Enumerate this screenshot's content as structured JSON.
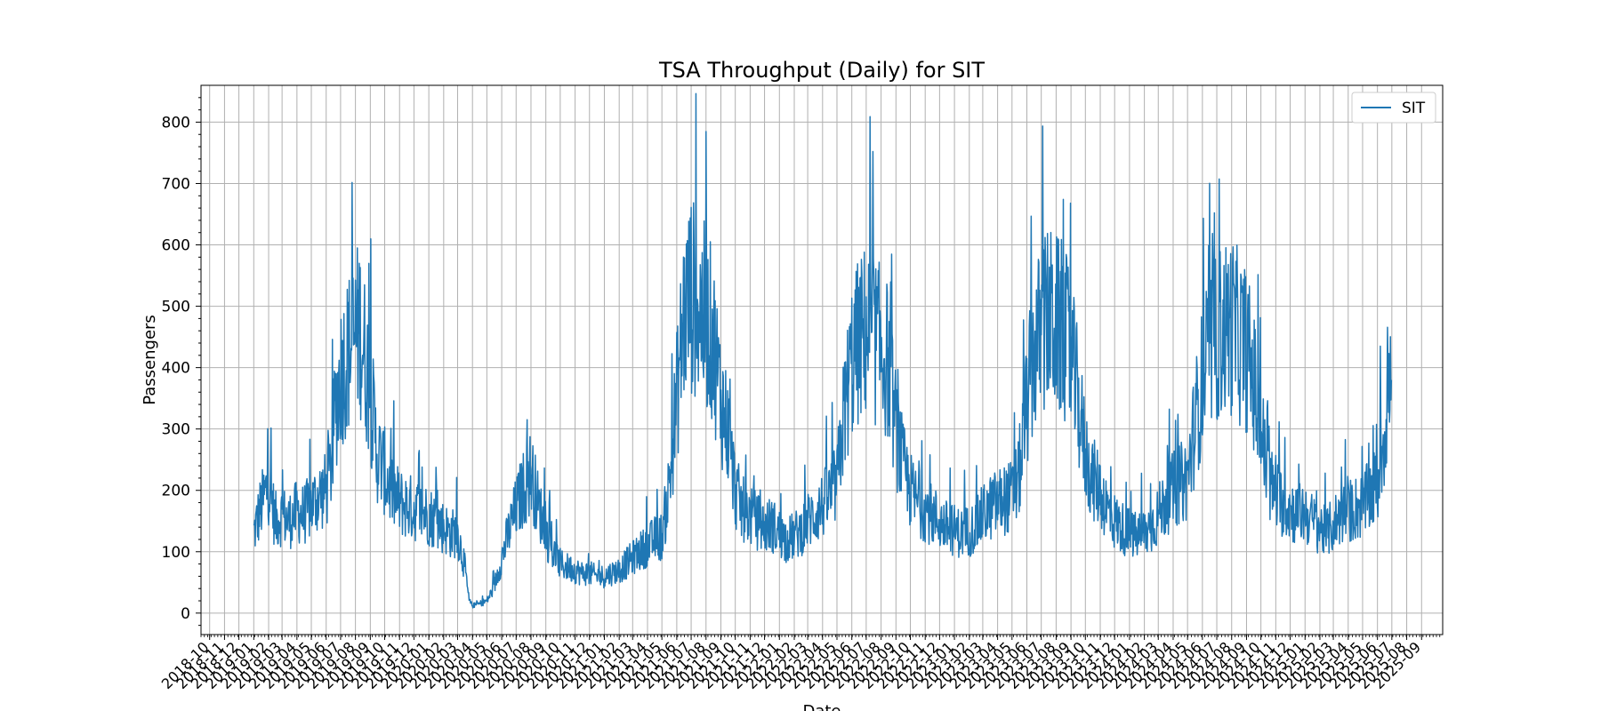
{
  "chart_data": {
    "type": "line",
    "title": "TSA Throughput (Daily) for SIT",
    "xlabel": "Date",
    "ylabel": "Passengers",
    "ylim": [
      -35,
      860
    ],
    "xlim": [
      "2018-09-13",
      "2025-10-15"
    ],
    "grid": true,
    "legend_position": "top-right",
    "yticks": [
      0,
      100,
      200,
      300,
      400,
      500,
      600,
      700,
      800
    ],
    "xtick_labels": [
      "2018-10",
      "2018-11",
      "2018-12",
      "2019-01",
      "2019-02",
      "2019-03",
      "2019-04",
      "2019-05",
      "2019-06",
      "2019-07",
      "2019-08",
      "2019-09",
      "2019-10",
      "2019-11",
      "2019-12",
      "2020-01",
      "2020-02",
      "2020-03",
      "2020-04",
      "2020-05",
      "2020-06",
      "2020-07",
      "2020-08",
      "2020-09",
      "2020-10",
      "2020-11",
      "2020-12",
      "2021-01",
      "2021-02",
      "2021-03",
      "2021-04",
      "2021-05",
      "2021-06",
      "2021-07",
      "2021-08",
      "2021-09",
      "2021-10",
      "2021-11",
      "2021-12",
      "2022-01",
      "2022-02",
      "2022-03",
      "2022-04",
      "2022-05",
      "2022-06",
      "2022-07",
      "2022-08",
      "2022-09",
      "2022-10",
      "2022-11",
      "2022-12",
      "2023-01",
      "2023-02",
      "2023-03",
      "2023-04",
      "2023-05",
      "2023-06",
      "2023-07",
      "2023-08",
      "2023-09",
      "2023-10",
      "2023-11",
      "2023-12",
      "2024-01",
      "2024-02",
      "2024-03",
      "2024-04",
      "2024-05",
      "2024-06",
      "2024-07",
      "2024-08",
      "2024-09",
      "2024-10",
      "2024-11",
      "2024-12",
      "2025-01",
      "2025-02",
      "2025-03",
      "2025-04",
      "2025-05",
      "2025-06",
      "2025-07",
      "2025-08",
      "2025-09"
    ],
    "series": [
      {
        "name": "SIT",
        "color": "#1f77b4",
        "x": [
          "2019-01-01",
          "2019-01-15",
          "2019-02-01",
          "2019-02-15",
          "2019-03-01",
          "2019-03-15",
          "2019-04-01",
          "2019-04-15",
          "2019-05-01",
          "2019-05-15",
          "2019-06-01",
          "2019-06-10",
          "2019-06-20",
          "2019-07-01",
          "2019-07-15",
          "2019-08-01",
          "2019-08-10",
          "2019-08-20",
          "2019-09-01",
          "2019-09-15",
          "2019-10-01",
          "2019-10-15",
          "2019-11-01",
          "2019-11-15",
          "2019-12-01",
          "2019-12-15",
          "2020-01-01",
          "2020-01-15",
          "2020-02-01",
          "2020-02-15",
          "2020-03-01",
          "2020-03-15",
          "2020-03-25",
          "2020-04-01",
          "2020-04-15",
          "2020-05-01",
          "2020-05-15",
          "2020-06-01",
          "2020-06-15",
          "2020-07-01",
          "2020-07-15",
          "2020-08-01",
          "2020-08-15",
          "2020-09-01",
          "2020-09-15",
          "2020-10-01",
          "2020-10-15",
          "2020-11-01",
          "2020-11-15",
          "2020-12-01",
          "2020-12-15",
          "2021-01-01",
          "2021-01-15",
          "2021-02-01",
          "2021-02-15",
          "2021-03-01",
          "2021-03-15",
          "2021-04-01",
          "2021-04-15",
          "2021-05-01",
          "2021-05-15",
          "2021-06-01",
          "2021-06-15",
          "2021-07-01",
          "2021-07-15",
          "2021-08-01",
          "2021-08-15",
          "2021-09-01",
          "2021-09-15",
          "2021-10-01",
          "2021-10-15",
          "2021-11-01",
          "2021-11-15",
          "2021-12-01",
          "2021-12-15",
          "2022-01-01",
          "2022-01-15",
          "2022-02-01",
          "2022-02-15",
          "2022-03-01",
          "2022-03-15",
          "2022-04-01",
          "2022-04-15",
          "2022-05-01",
          "2022-05-15",
          "2022-06-01",
          "2022-06-15",
          "2022-07-01",
          "2022-07-15",
          "2022-08-01",
          "2022-08-15",
          "2022-09-01",
          "2022-09-15",
          "2022-10-01",
          "2022-10-15",
          "2022-11-01",
          "2022-11-15",
          "2022-12-01",
          "2022-12-15",
          "2023-01-01",
          "2023-01-15",
          "2023-02-01",
          "2023-02-15",
          "2023-03-01",
          "2023-03-15",
          "2023-04-01",
          "2023-04-15",
          "2023-05-01",
          "2023-05-15",
          "2023-06-01",
          "2023-06-15",
          "2023-07-01",
          "2023-07-15",
          "2023-08-01",
          "2023-08-15",
          "2023-09-01",
          "2023-09-15",
          "2023-10-01",
          "2023-10-15",
          "2023-11-01",
          "2023-11-15",
          "2023-12-01",
          "2023-12-15",
          "2024-01-01",
          "2024-01-15",
          "2024-02-01",
          "2024-02-15",
          "2024-03-01",
          "2024-03-15",
          "2024-04-01",
          "2024-04-15",
          "2024-05-01",
          "2024-05-15",
          "2024-06-01",
          "2024-06-15",
          "2024-07-01",
          "2024-07-15",
          "2024-08-01",
          "2024-08-15",
          "2024-09-01",
          "2024-09-15",
          "2024-10-01",
          "2024-10-15",
          "2024-11-01",
          "2024-11-15",
          "2024-12-01",
          "2024-12-15",
          "2025-01-01",
          "2025-01-15",
          "2025-02-01",
          "2025-02-15",
          "2025-03-01",
          "2025-03-15",
          "2025-04-01",
          "2025-04-15",
          "2025-05-01",
          "2025-05-15",
          "2025-06-01",
          "2025-06-10",
          "2025-06-20",
          "2025-06-30"
        ],
        "values": [
          130,
          170,
          210,
          150,
          160,
          150,
          165,
          160,
          175,
          190,
          200,
          230,
          330,
          390,
          420,
          450,
          470,
          420,
          360,
          260,
          230,
          200,
          180,
          175,
          170,
          165,
          160,
          150,
          140,
          130,
          130,
          80,
          20,
          12,
          15,
          20,
          40,
          90,
          130,
          170,
          200,
          230,
          180,
          130,
          100,
          80,
          75,
          70,
          65,
          65,
          60,
          60,
          65,
          70,
          80,
          90,
          100,
          110,
          120,
          125,
          200,
          350,
          480,
          520,
          500,
          480,
          450,
          350,
          300,
          200,
          170,
          160,
          150,
          140,
          145,
          130,
          120,
          125,
          135,
          150,
          160,
          175,
          190,
          210,
          320,
          410,
          440,
          460,
          450,
          430,
          410,
          300,
          240,
          200,
          180,
          170,
          160,
          150,
          140,
          135,
          130,
          135,
          140,
          160,
          170,
          180,
          185,
          190,
          220,
          340,
          420,
          460,
          480,
          470,
          460,
          420,
          350,
          260,
          220,
          200,
          170,
          150,
          140,
          130,
          125,
          130,
          140,
          160,
          180,
          200,
          210,
          220,
          300,
          380,
          420,
          450,
          460,
          470,
          450,
          430,
          380,
          300,
          220,
          190,
          180,
          170,
          160,
          165,
          150,
          140,
          130,
          145,
          160,
          165,
          170,
          175,
          190,
          210,
          260,
          330,
          380
        ]
      }
    ]
  }
}
